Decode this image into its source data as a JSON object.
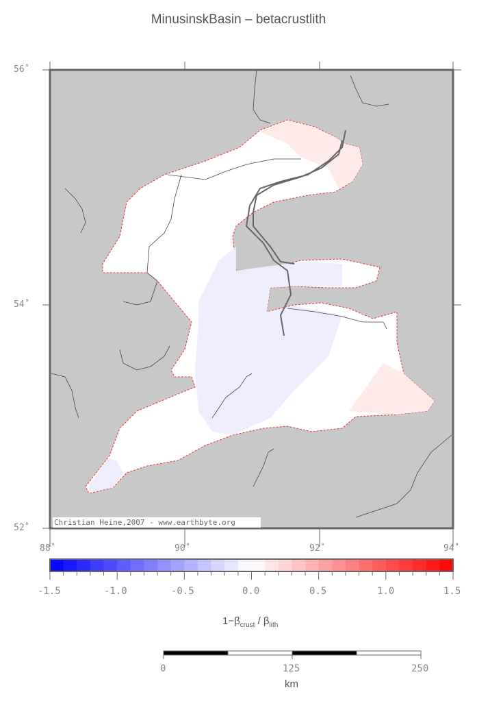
{
  "title": "MinusinskBasin – betacrustlith",
  "map": {
    "lat_labels": [
      "56˚",
      "54˚",
      "52˚"
    ],
    "lon_labels": [
      "88˚",
      "90˚",
      "92˚",
      "94˚"
    ],
    "credit": "Christian Heine,2007 - www.earthbyte.org",
    "land_color": "#c8c8c8"
  },
  "colorbar": {
    "min": -1.5,
    "max": 1.5,
    "step": 0.1,
    "low_color": "#0000ff",
    "mid_color": "#ffffff",
    "high_color": "#ff0000",
    "tick_labels": [
      "-1.5",
      "-1.0",
      "-0.5",
      "0.0",
      "0.5",
      "1.0",
      "1.5"
    ],
    "label_main": "1−β",
    "label_sub1": "crust",
    "label_mid": " / β",
    "label_sub2": "lith"
  },
  "scalebar": {
    "labels": [
      "0",
      "125",
      "250"
    ],
    "unit": "km"
  }
}
